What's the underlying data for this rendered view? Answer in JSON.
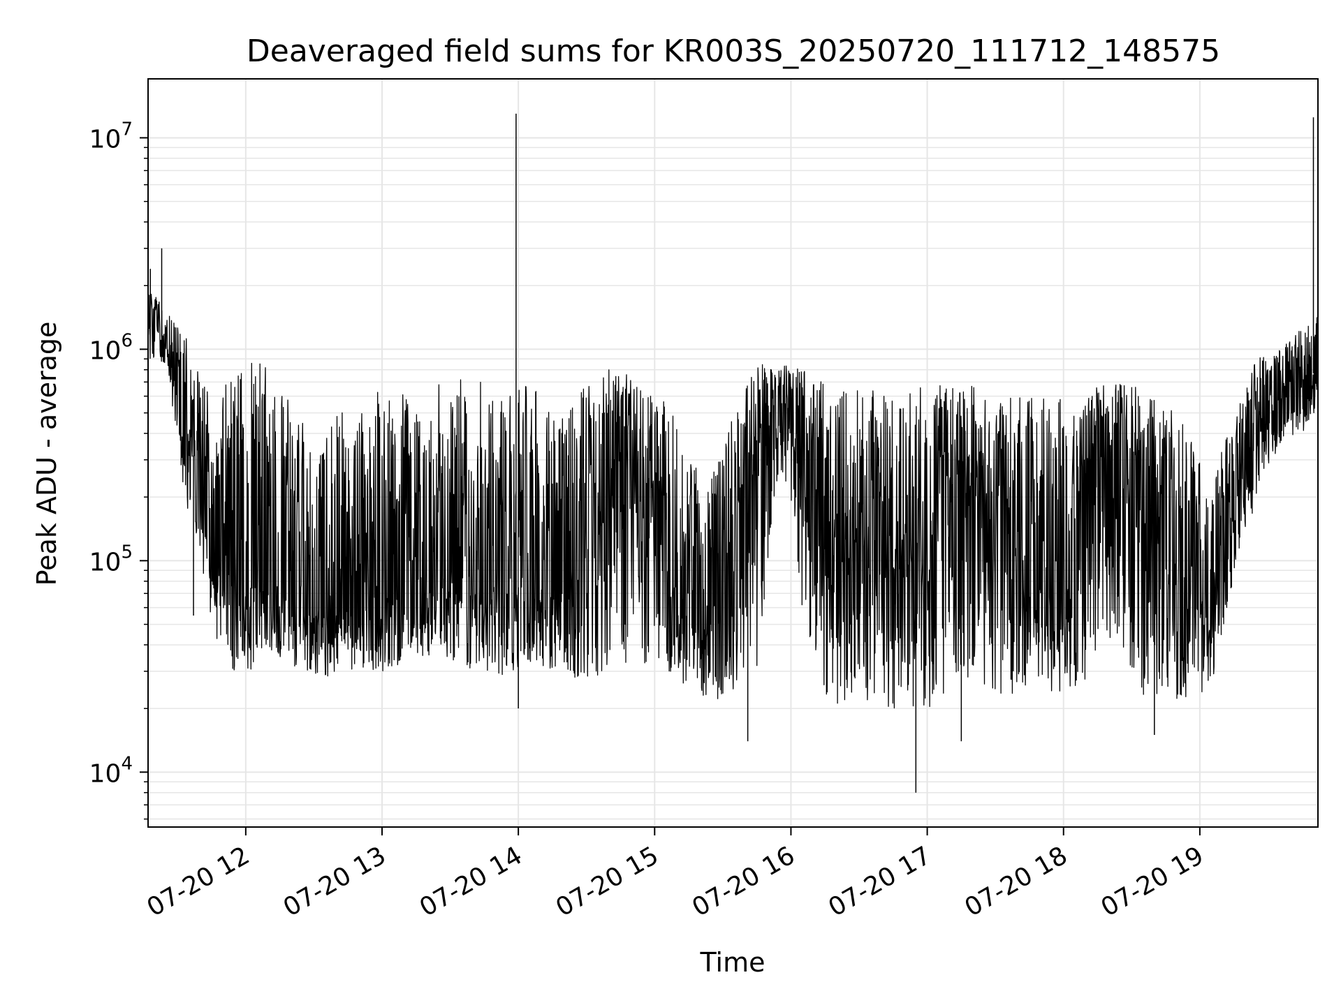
{
  "chart_data": {
    "type": "line",
    "title": "Deaveraged field sums for KR003S_20250720_111712_148575",
    "xlabel": "Time",
    "ylabel": "Peak ADU - average",
    "y_scale": "log",
    "grid": true,
    "legend": "none",
    "line_color": "#000000",
    "xlim": [
      "2025-07-20 11:17",
      "2025-07-20 19:52"
    ],
    "ylim": [
      5500,
      19000000
    ],
    "x_ticks": [
      {
        "value": "2025-07-20 12:00",
        "label": "07-20 12"
      },
      {
        "value": "2025-07-20 13:00",
        "label": "07-20 13"
      },
      {
        "value": "2025-07-20 14:00",
        "label": "07-20 14"
      },
      {
        "value": "2025-07-20 15:00",
        "label": "07-20 15"
      },
      {
        "value": "2025-07-20 16:00",
        "label": "07-20 16"
      },
      {
        "value": "2025-07-20 17:00",
        "label": "07-20 17"
      },
      {
        "value": "2025-07-20 18:00",
        "label": "07-20 18"
      },
      {
        "value": "2025-07-20 19:00",
        "label": "07-20 19"
      }
    ],
    "y_ticks": [
      {
        "value": 10000,
        "base": "10",
        "exp": "4"
      },
      {
        "value": 100000,
        "base": "10",
        "exp": "5"
      },
      {
        "value": 1000000,
        "base": "10",
        "exp": "6"
      },
      {
        "value": 10000000,
        "base": "10",
        "exp": "7"
      }
    ],
    "envelope": {
      "x": [
        "2025-07-20 11:17",
        "2025-07-20 11:25",
        "2025-07-20 11:35",
        "2025-07-20 11:45",
        "2025-07-20 11:55",
        "2025-07-20 12:05",
        "2025-07-20 12:15",
        "2025-07-20 12:25",
        "2025-07-20 12:35",
        "2025-07-20 12:45",
        "2025-07-20 12:55",
        "2025-07-20 13:05",
        "2025-07-20 13:15",
        "2025-07-20 13:25",
        "2025-07-20 13:35",
        "2025-07-20 13:45",
        "2025-07-20 13:55",
        "2025-07-20 14:05",
        "2025-07-20 14:15",
        "2025-07-20 14:25",
        "2025-07-20 14:35",
        "2025-07-20 14:45",
        "2025-07-20 14:55",
        "2025-07-20 15:05",
        "2025-07-20 15:15",
        "2025-07-20 15:25",
        "2025-07-20 15:35",
        "2025-07-20 15:45",
        "2025-07-20 15:55",
        "2025-07-20 16:05",
        "2025-07-20 16:15",
        "2025-07-20 16:25",
        "2025-07-20 16:35",
        "2025-07-20 16:45",
        "2025-07-20 16:55",
        "2025-07-20 17:05",
        "2025-07-20 17:15",
        "2025-07-20 17:25",
        "2025-07-20 17:35",
        "2025-07-20 17:45",
        "2025-07-20 17:55",
        "2025-07-20 18:05",
        "2025-07-20 18:15",
        "2025-07-20 18:25",
        "2025-07-20 18:35",
        "2025-07-20 18:45",
        "2025-07-20 18:55",
        "2025-07-20 19:05",
        "2025-07-20 19:15",
        "2025-07-20 19:25",
        "2025-07-20 19:35",
        "2025-07-20 19:45",
        "2025-07-20 19:52"
      ],
      "high": [
        2000000,
        1500000,
        1100000,
        600000,
        800000,
        900000,
        700000,
        500000,
        600000,
        500000,
        600000,
        700000,
        500000,
        700000,
        800000,
        700000,
        600000,
        700000,
        500000,
        600000,
        800000,
        800000,
        700000,
        600000,
        300000,
        250000,
        500000,
        850000,
        850000,
        800000,
        700000,
        650000,
        650000,
        650000,
        650000,
        700000,
        700000,
        650000,
        600000,
        650000,
        600000,
        550000,
        700000,
        700000,
        650000,
        600000,
        400000,
        250000,
        500000,
        900000,
        1000000,
        1300000,
        1500000
      ],
      "low": [
        900000,
        800000,
        150000,
        45000,
        30000,
        30000,
        35000,
        30000,
        28000,
        30000,
        30000,
        30000,
        35000,
        35000,
        30000,
        30000,
        28000,
        30000,
        30000,
        28000,
        28000,
        30000,
        30000,
        30000,
        25000,
        22000,
        22000,
        30000,
        300000,
        60000,
        22000,
        20000,
        20000,
        20000,
        20000,
        20000,
        25000,
        25000,
        23000,
        23000,
        23000,
        25000,
        30000,
        25000,
        22000,
        22000,
        22000,
        25000,
        80000,
        200000,
        350000,
        400000,
        500000
      ],
      "typical": [
        1300000,
        1100000,
        400000,
        120000,
        90000,
        80000,
        75000,
        60000,
        60000,
        55000,
        60000,
        70000,
        65000,
        80000,
        90000,
        75000,
        70000,
        80000,
        70000,
        80000,
        150000,
        250000,
        200000,
        100000,
        60000,
        50000,
        70000,
        300000,
        650000,
        300000,
        120000,
        100000,
        100000,
        110000,
        110000,
        150000,
        200000,
        180000,
        120000,
        80000,
        70000,
        90000,
        300000,
        350000,
        250000,
        150000,
        80000,
        60000,
        150000,
        450000,
        600000,
        700000,
        800000
      ]
    },
    "spikes": [
      {
        "x": "2025-07-20 11:18",
        "y": 2400000
      },
      {
        "x": "2025-07-20 11:23",
        "y": 3000000
      },
      {
        "x": "2025-07-20 11:37",
        "y": 55000
      },
      {
        "x": "2025-07-20 13:59",
        "y": 13000000
      },
      {
        "x": "2025-07-20 14:00",
        "y": 20000
      },
      {
        "x": "2025-07-20 15:41",
        "y": 14000
      },
      {
        "x": "2025-07-20 16:55",
        "y": 8000
      },
      {
        "x": "2025-07-20 17:15",
        "y": 14000
      },
      {
        "x": "2025-07-20 18:40",
        "y": 15000
      },
      {
        "x": "2025-07-20 19:50",
        "y": 12500000
      }
    ]
  }
}
